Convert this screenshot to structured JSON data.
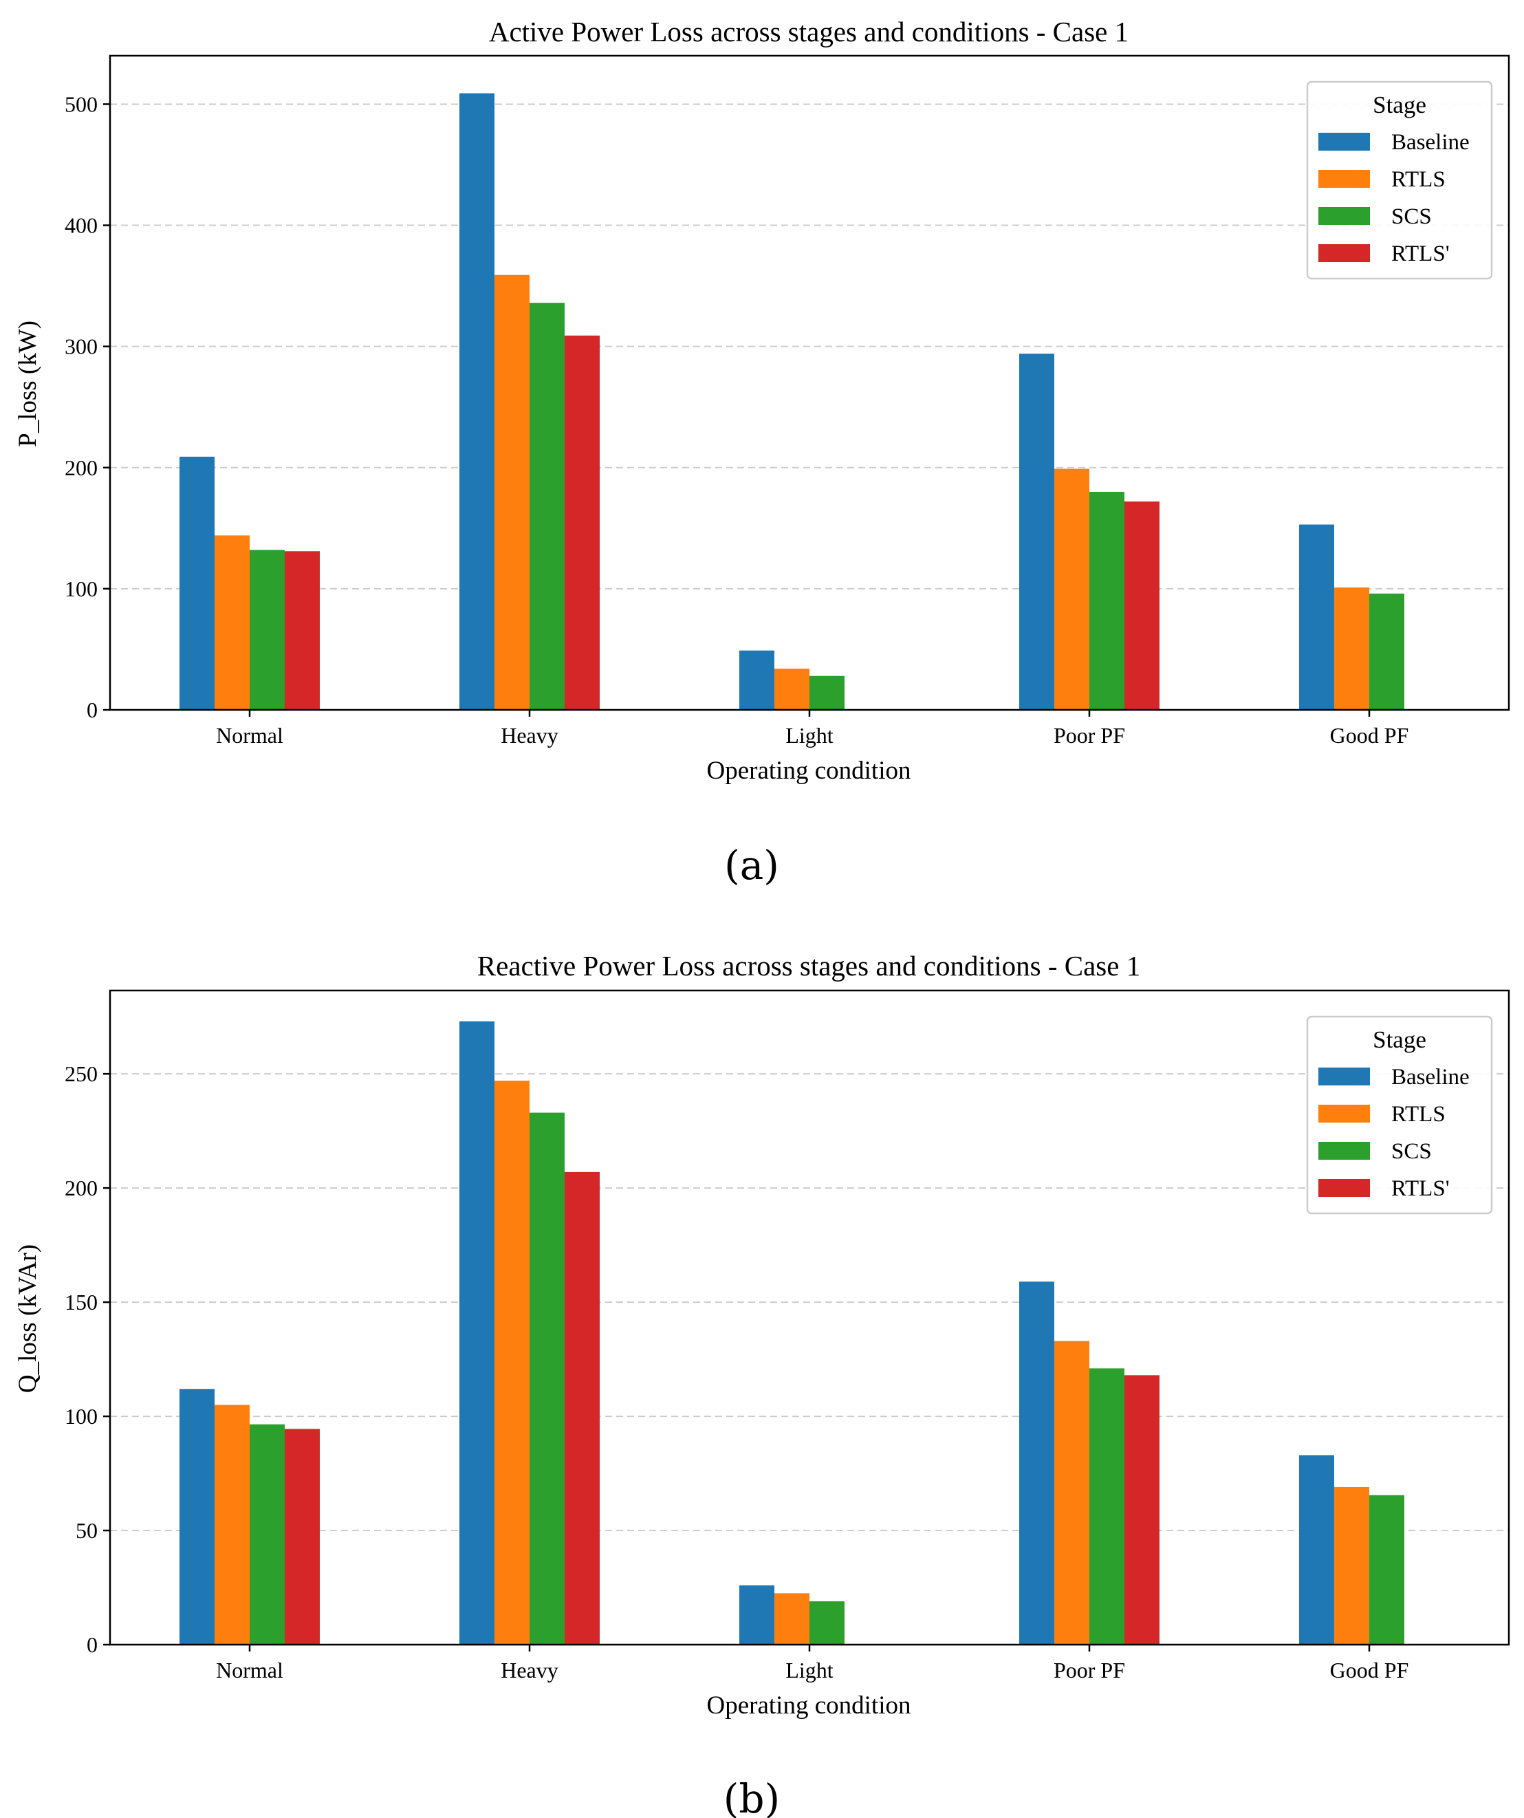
{
  "colors": {
    "Baseline": "#1f77b4",
    "RTLS": "#ff7f0e",
    "SCS": "#2ca02c",
    "RTLS'": "#d62728"
  },
  "chart_data": [
    {
      "type": "bar",
      "panel_label": "(a)",
      "title": "Active Power Loss across stages and conditions - Case 1",
      "xlabel": "Operating condition",
      "ylabel": "P_loss (kW)",
      "ylim": [
        0,
        540
      ],
      "yticks": [
        0,
        100,
        200,
        300,
        400,
        500
      ],
      "grid": true,
      "legend_title": "Stage",
      "legend_position": "top-right",
      "categories": [
        "Normal",
        "Heavy",
        "Light",
        "Poor PF",
        "Good PF"
      ],
      "series": [
        {
          "name": "Baseline",
          "values": [
            209,
            509,
            49,
            294,
            153
          ]
        },
        {
          "name": "RTLS",
          "values": [
            144,
            359,
            34,
            199,
            101
          ]
        },
        {
          "name": "SCS",
          "values": [
            132,
            336,
            28,
            180,
            96
          ]
        },
        {
          "name": "RTLS'",
          "values": [
            131,
            309,
            null,
            172,
            null
          ]
        }
      ]
    },
    {
      "type": "bar",
      "panel_label": "(b)",
      "title": "Reactive Power Loss across stages and conditions - Case 1",
      "xlabel": "Operating condition",
      "ylabel": "Q_loss (kVAr)",
      "ylim": [
        0,
        286.5
      ],
      "yticks": [
        0,
        50,
        100,
        150,
        200,
        250
      ],
      "grid": true,
      "legend_title": "Stage",
      "legend_position": "top-right",
      "categories": [
        "Normal",
        "Heavy",
        "Light",
        "Poor PF",
        "Good PF"
      ],
      "series": [
        {
          "name": "Baseline",
          "values": [
            112,
            273,
            26,
            159,
            83
          ]
        },
        {
          "name": "RTLS",
          "values": [
            105,
            247,
            22.5,
            133,
            69
          ]
        },
        {
          "name": "SCS",
          "values": [
            96.5,
            233,
            19,
            121,
            65.5
          ]
        },
        {
          "name": "RTLS'",
          "values": [
            94.5,
            207,
            null,
            118,
            null
          ]
        }
      ]
    }
  ]
}
